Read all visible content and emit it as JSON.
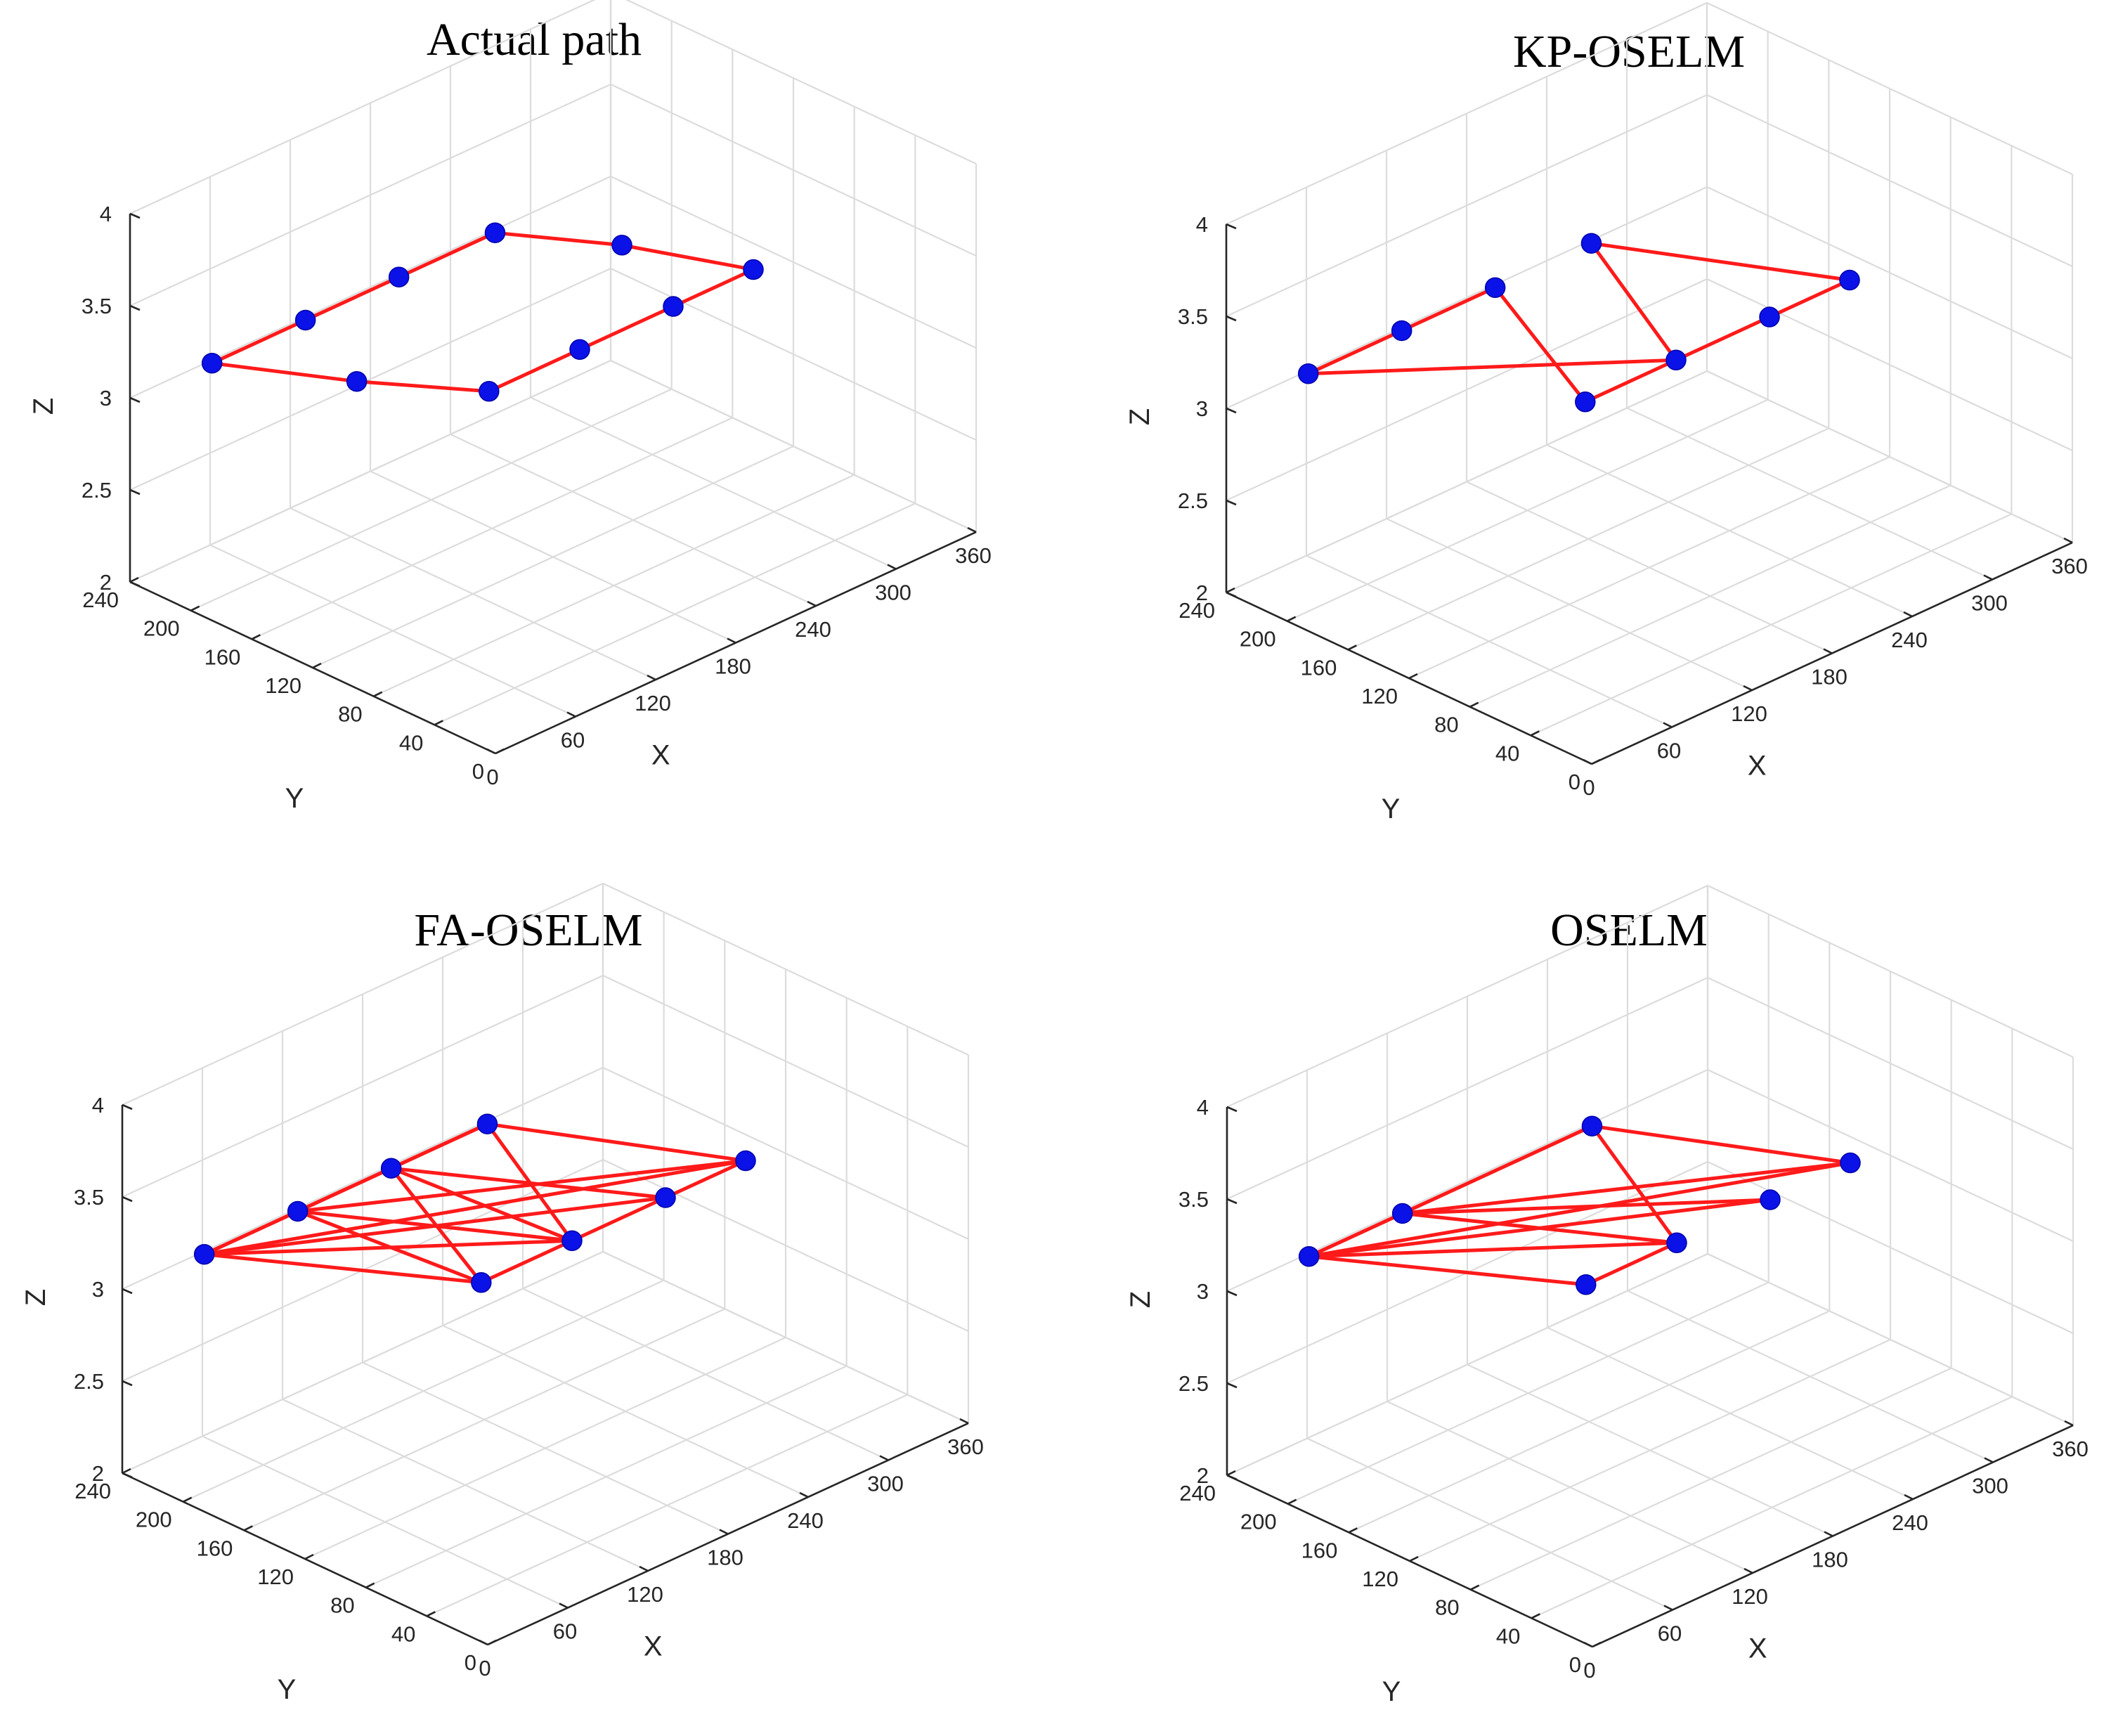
{
  "chart_data": [
    {
      "type": "scatter3d",
      "title": "Actual path",
      "xlabel": "X",
      "ylabel": "Y",
      "zlabel": "Z",
      "xlim": [
        0,
        360
      ],
      "ylim": [
        0,
        240
      ],
      "zlim": [
        2,
        4
      ],
      "xticks": [
        0,
        60,
        120,
        180,
        240,
        300,
        360
      ],
      "yticks": [
        0,
        40,
        80,
        120,
        160,
        200,
        240
      ],
      "zticks": [
        2,
        2.5,
        3,
        3.5,
        4
      ],
      "points": [
        {
          "x": 50,
          "y": 230,
          "z": 3.06
        },
        {
          "x": 120,
          "y": 230,
          "z": 3.06
        },
        {
          "x": 190,
          "y": 230,
          "z": 3.06
        },
        {
          "x": 262,
          "y": 230,
          "z": 3.06
        },
        {
          "x": 300,
          "y": 180,
          "z": 3.06
        },
        {
          "x": 330,
          "y": 120,
          "z": 3.06
        },
        {
          "x": 270,
          "y": 120,
          "z": 3.06
        },
        {
          "x": 200,
          "y": 120,
          "z": 3.06
        },
        {
          "x": 132,
          "y": 120,
          "z": 3.06
        },
        {
          "x": 90,
          "y": 170,
          "z": 3.06
        }
      ],
      "segments": [
        [
          0,
          1
        ],
        [
          1,
          2
        ],
        [
          2,
          3
        ],
        [
          3,
          4
        ],
        [
          4,
          5
        ],
        [
          5,
          6
        ],
        [
          6,
          7
        ],
        [
          7,
          8
        ],
        [
          8,
          9
        ],
        [
          9,
          0
        ]
      ]
    },
    {
      "type": "scatter3d",
      "title": "KP-OSELM",
      "xlabel": "X",
      "ylabel": "Y",
      "zlabel": "Z",
      "xlim": [
        0,
        360
      ],
      "ylim": [
        0,
        240
      ],
      "zlim": [
        2,
        4
      ],
      "xticks": [
        0,
        60,
        120,
        180,
        240,
        300,
        360
      ],
      "yticks": [
        0,
        40,
        80,
        120,
        160,
        200,
        240
      ],
      "zticks": [
        2,
        2.5,
        3,
        3.5,
        4
      ],
      "points": [
        {
          "x": 50,
          "y": 230,
          "z": 3.06
        },
        {
          "x": 120,
          "y": 230,
          "z": 3.06
        },
        {
          "x": 190,
          "y": 230,
          "z": 3.06
        },
        {
          "x": 262,
          "y": 230,
          "z": 3.06
        },
        {
          "x": 330,
          "y": 120,
          "z": 3.06
        },
        {
          "x": 270,
          "y": 120,
          "z": 3.06
        },
        {
          "x": 200,
          "y": 120,
          "z": 3.06
        },
        {
          "x": 132,
          "y": 120,
          "z": 3.06
        }
      ],
      "segments": [
        [
          0,
          1
        ],
        [
          1,
          2
        ],
        [
          2,
          7
        ],
        [
          7,
          6
        ],
        [
          6,
          0
        ],
        [
          6,
          5
        ],
        [
          5,
          4
        ],
        [
          4,
          3
        ],
        [
          3,
          6
        ]
      ]
    },
    {
      "type": "scatter3d",
      "title": "FA-OSELM",
      "xlabel": "X",
      "ylabel": "Y",
      "zlabel": "Z",
      "xlim": [
        0,
        360
      ],
      "ylim": [
        0,
        240
      ],
      "zlim": [
        2,
        4
      ],
      "xticks": [
        0,
        60,
        120,
        180,
        240,
        300,
        360
      ],
      "yticks": [
        0,
        40,
        80,
        120,
        160,
        200,
        240
      ],
      "zticks": [
        2,
        2.5,
        3,
        3.5,
        4
      ],
      "points": [
        {
          "x": 50,
          "y": 230,
          "z": 3.06
        },
        {
          "x": 120,
          "y": 230,
          "z": 3.06
        },
        {
          "x": 190,
          "y": 230,
          "z": 3.06
        },
        {
          "x": 262,
          "y": 230,
          "z": 3.06
        },
        {
          "x": 330,
          "y": 120,
          "z": 3.06
        },
        {
          "x": 270,
          "y": 120,
          "z": 3.06
        },
        {
          "x": 200,
          "y": 120,
          "z": 3.06
        },
        {
          "x": 132,
          "y": 120,
          "z": 3.06
        }
      ],
      "segments": [
        [
          0,
          1
        ],
        [
          0,
          2
        ],
        [
          0,
          3
        ],
        [
          0,
          4
        ],
        [
          0,
          5
        ],
        [
          0,
          6
        ],
        [
          0,
          7
        ],
        [
          1,
          2
        ],
        [
          1,
          3
        ],
        [
          1,
          4
        ],
        [
          1,
          6
        ],
        [
          1,
          7
        ],
        [
          2,
          3
        ],
        [
          2,
          5
        ],
        [
          2,
          6
        ],
        [
          2,
          7
        ],
        [
          3,
          4
        ],
        [
          3,
          6
        ],
        [
          4,
          5
        ],
        [
          5,
          6
        ],
        [
          6,
          7
        ]
      ]
    },
    {
      "type": "scatter3d",
      "title": "OSELM",
      "xlabel": "X",
      "ylabel": "Y",
      "zlabel": "Z",
      "xlim": [
        0,
        360
      ],
      "ylim": [
        0,
        240
      ],
      "zlim": [
        2,
        4
      ],
      "xticks": [
        0,
        60,
        120,
        180,
        240,
        300,
        360
      ],
      "yticks": [
        0,
        40,
        80,
        120,
        160,
        200,
        240
      ],
      "zticks": [
        2,
        2.5,
        3,
        3.5,
        4
      ],
      "points": [
        {
          "x": 50,
          "y": 230,
          "z": 3.06
        },
        {
          "x": 120,
          "y": 230,
          "z": 3.06
        },
        {
          "x": 262,
          "y": 230,
          "z": 3.06
        },
        {
          "x": 330,
          "y": 120,
          "z": 3.06
        },
        {
          "x": 270,
          "y": 120,
          "z": 3.06
        },
        {
          "x": 200,
          "y": 120,
          "z": 3.06
        },
        {
          "x": 132,
          "y": 120,
          "z": 3.06
        }
      ],
      "segments": [
        [
          0,
          1
        ],
        [
          0,
          2
        ],
        [
          0,
          3
        ],
        [
          0,
          4
        ],
        [
          0,
          5
        ],
        [
          0,
          6
        ],
        [
          1,
          2
        ],
        [
          1,
          3
        ],
        [
          1,
          5
        ],
        [
          1,
          4
        ],
        [
          2,
          3
        ],
        [
          2,
          5
        ],
        [
          5,
          6
        ]
      ]
    }
  ]
}
